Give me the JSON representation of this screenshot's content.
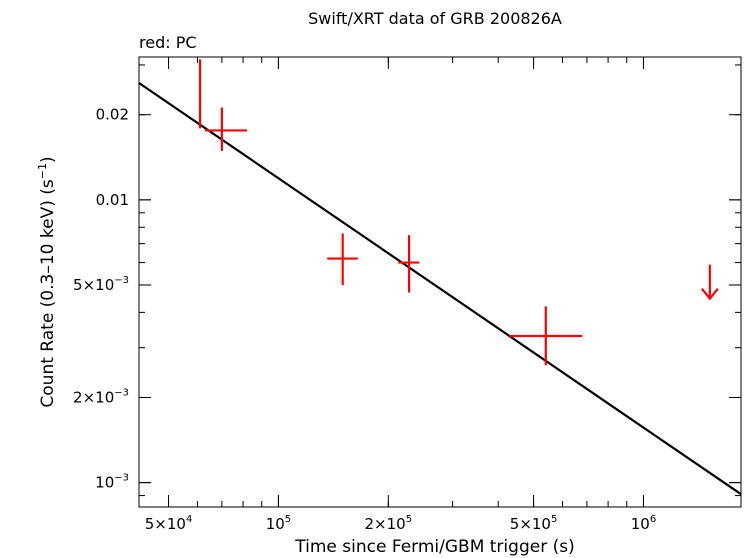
{
  "chart_data": {
    "type": "scatter",
    "title": "Swift/XRT data of GRB 200826A",
    "subtitle": "red: PC",
    "xlabel": "Time since Fermi/GBM trigger (s)",
    "ylabel": {
      "main": "Count Rate (0.3–10 keV) (s",
      "sup": "−1",
      "close": ")"
    },
    "xscale": "log",
    "yscale": "log",
    "xlim": [
      41500,
      1850000
    ],
    "ylim": [
      0.00082,
      0.032
    ],
    "xticks": [
      {
        "value": 50000,
        "mant": "5×10",
        "exp": "4"
      },
      {
        "value": 100000,
        "mant": "10",
        "exp": "5"
      },
      {
        "value": 200000,
        "mant": "2×10",
        "exp": "5"
      },
      {
        "value": 500000,
        "mant": "5×10",
        "exp": "5"
      },
      {
        "value": 1000000,
        "mant": "10",
        "exp": "6"
      }
    ],
    "yticks": [
      {
        "value": 0.001,
        "mant": "10",
        "exp": "−3"
      },
      {
        "value": 0.002,
        "mant": "2×10",
        "exp": "−3"
      },
      {
        "value": 0.005,
        "mant": "5×10",
        "exp": "−3"
      },
      {
        "value": 0.01,
        "mant": "0.01",
        "exp": ""
      },
      {
        "value": 0.02,
        "mant": "0.02",
        "exp": ""
      }
    ],
    "series": [
      {
        "name": "PC",
        "color": "#ff0000",
        "points": [
          {
            "x": 61000,
            "xerr": [
              300,
              300
            ],
            "y": 0.0232,
            "yerr": [
              0.0053,
              0.0082
            ]
          },
          {
            "x": 70000,
            "xerr": [
              7000,
              12000
            ],
            "y": 0.0176,
            "yerr": [
              0.0027,
              0.0036
            ]
          },
          {
            "x": 150000,
            "xerr": [
              14000,
              15000
            ],
            "y": 0.0062,
            "yerr": [
              0.0012,
              0.0014
            ]
          },
          {
            "x": 228000,
            "xerr": [
              15000,
              15000
            ],
            "y": 0.006,
            "yerr": [
              0.0013,
              0.0015
            ]
          },
          {
            "x": 540000,
            "xerr": [
              110000,
              140000
            ],
            "y": 0.0033,
            "yerr": [
              0.0007,
              0.0009
            ]
          }
        ],
        "upper_limits": [
          {
            "x": 1520000,
            "y": 0.0059
          }
        ]
      }
    ],
    "model": {
      "name": "power-law fit",
      "color": "#000000",
      "x": [
        41500,
        1850000
      ],
      "y": [
        0.0259,
        0.00091
      ]
    }
  }
}
